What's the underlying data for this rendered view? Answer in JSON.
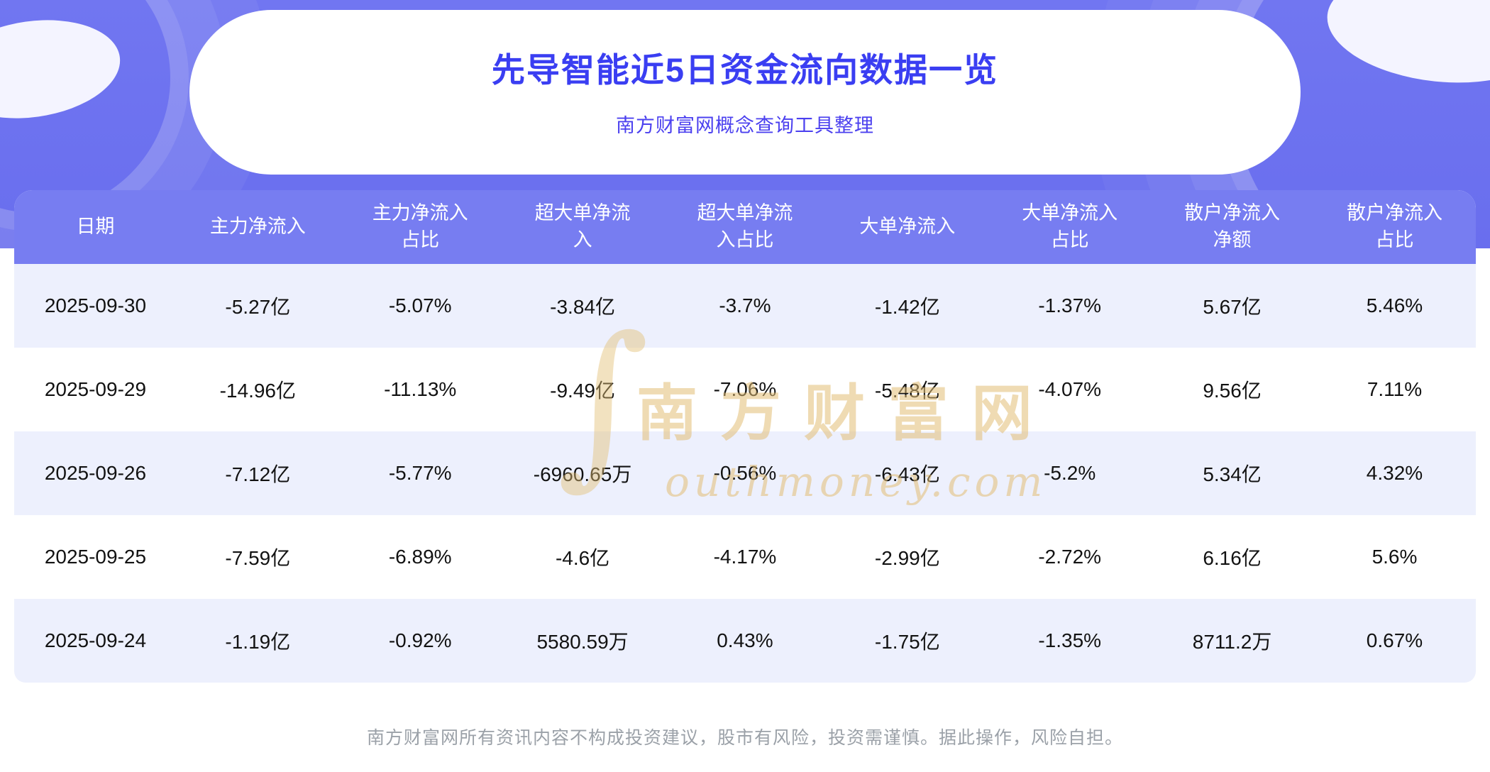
{
  "banner": {
    "title": "先导智能近5日资金流向数据一览",
    "subtitle": "南方财富网概念查询工具整理"
  },
  "chart_data": {
    "type": "table",
    "title": "先导智能近5日资金流向数据一览",
    "source_note": "南方财富网概念查询工具整理",
    "columns": [
      "日期",
      "主力净流入",
      "主力净流入占比",
      "超大单净流入",
      "超大单净流入占比",
      "大单净流入",
      "大单净流入占比",
      "散户净流入净额",
      "散户净流入占比"
    ],
    "rows": [
      [
        "2025-09-30",
        "-5.27亿",
        "-5.07%",
        "-3.84亿",
        "-3.7%",
        "-1.42亿",
        "-1.37%",
        "5.67亿",
        "5.46%"
      ],
      [
        "2025-09-29",
        "-14.96亿",
        "-11.13%",
        "-9.49亿",
        "-7.06%",
        "-5.48亿",
        "-4.07%",
        "9.56亿",
        "7.11%"
      ],
      [
        "2025-09-26",
        "-7.12亿",
        "-5.77%",
        "-6960.65万",
        "-0.56%",
        "-6.43亿",
        "-5.2%",
        "5.34亿",
        "4.32%"
      ],
      [
        "2025-09-25",
        "-7.59亿",
        "-6.89%",
        "-4.6亿",
        "-4.17%",
        "-2.99亿",
        "-2.72%",
        "6.16亿",
        "5.6%"
      ],
      [
        "2025-09-24",
        "-1.19亿",
        "-0.92%",
        "5580.59万",
        "0.43%",
        "-1.75亿",
        "-1.35%",
        "8711.2万",
        "0.67%"
      ]
    ]
  },
  "watermark": {
    "line1": "南方财富网",
    "line2": "outhmoney.com"
  },
  "footer": {
    "disclaimer": "南方财富网所有资讯内容不构成投资建议，股市有风险，投资需谨慎。据此操作，风险自担。"
  },
  "colors": {
    "banner_purple": "#6b70ee",
    "header_bg": "#777df1",
    "row_alt_bg": "#edf0fd",
    "title_blue": "#3a3ef2",
    "subtitle_blue": "#4b40ef",
    "watermark_gold": "#e2be74"
  }
}
